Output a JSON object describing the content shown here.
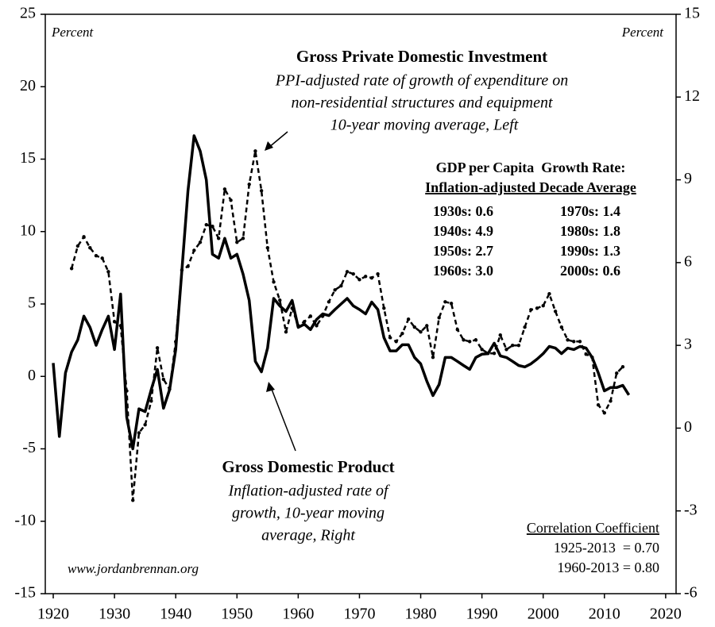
{
  "chart_data": {
    "type": "line",
    "x": [
      1920,
      1921,
      1922,
      1923,
      1924,
      1925,
      1926,
      1927,
      1928,
      1929,
      1930,
      1931,
      1932,
      1933,
      1934,
      1935,
      1936,
      1937,
      1938,
      1939,
      1940,
      1941,
      1942,
      1943,
      1944,
      1945,
      1946,
      1947,
      1948,
      1949,
      1950,
      1951,
      1952,
      1953,
      1954,
      1955,
      1956,
      1957,
      1958,
      1959,
      1960,
      1961,
      1962,
      1963,
      1964,
      1965,
      1966,
      1967,
      1968,
      1969,
      1970,
      1971,
      1972,
      1973,
      1974,
      1975,
      1976,
      1977,
      1978,
      1979,
      1980,
      1981,
      1982,
      1983,
      1984,
      1985,
      1986,
      1987,
      1988,
      1989,
      1990,
      1991,
      1992,
      1993,
      1994,
      1995,
      1996,
      1997,
      1998,
      1999,
      2000,
      2001,
      2002,
      2003,
      2004,
      2005,
      2006,
      2007,
      2008,
      2009,
      2010,
      2011,
      2012,
      2013,
      2014
    ],
    "series": [
      {
        "name": "Gross Private Domestic Investment",
        "description": [
          "PPI-adjusted rate of growth of expenditure on",
          "non-residential structures and equipment",
          "10-year moving average, Left"
        ],
        "color": "#000000",
        "style": "dashed",
        "markers": true,
        "axis": "y",
        "values": [
          null,
          null,
          null,
          7.45,
          9.0,
          9.64,
          8.88,
          8.33,
          8.16,
          7.23,
          3.78,
          3.5,
          -1.0,
          -8.55,
          -3.9,
          -3.34,
          -1.7,
          1.97,
          -0.2,
          -0.88,
          2.4,
          7.34,
          7.6,
          8.7,
          9.26,
          10.47,
          10.36,
          9.53,
          12.93,
          12.16,
          9.26,
          9.53,
          13.26,
          15.56,
          12.82,
          8.88,
          6.52,
          5.26,
          3.07,
          4.71,
          3.5,
          3.78,
          4.16,
          3.5,
          4.16,
          5.15,
          5.97,
          6.25,
          7.23,
          7.07,
          6.68,
          6.9,
          6.8,
          7.07,
          4.71,
          2.68,
          2.41,
          2.96,
          3.95,
          3.4,
          3.07,
          3.5,
          1.32,
          4.05,
          5.15,
          5.04,
          3.23,
          2.52,
          2.41,
          2.52,
          1.86,
          1.59,
          1.59,
          2.85,
          1.86,
          2.14,
          2.14,
          3.4,
          4.6,
          4.71,
          4.88,
          5.7,
          4.49,
          3.4,
          2.52,
          2.41,
          2.41,
          1.53,
          1.32,
          -1.97,
          -2.52,
          -1.7,
          0.22,
          0.66,
          null
        ]
      },
      {
        "name": "Gross Domestic Product",
        "description": [
          "Inflation-adjusted rate of",
          "growth, 10-year moving",
          "average, Right"
        ],
        "color": "#000000",
        "style": "solid",
        "markers": false,
        "axis": "y2",
        "values": [
          2.36,
          -0.3,
          2.0,
          2.76,
          3.2,
          4.06,
          3.65,
          3.0,
          3.57,
          4.06,
          2.85,
          4.86,
          0.4,
          -0.75,
          0.7,
          0.6,
          1.4,
          2.13,
          0.72,
          1.4,
          2.85,
          5.7,
          8.6,
          10.6,
          10.04,
          9.0,
          6.3,
          6.16,
          6.88,
          6.16,
          6.3,
          5.58,
          4.63,
          2.42,
          2.04,
          2.9,
          4.7,
          4.43,
          4.23,
          4.63,
          3.65,
          3.77,
          3.57,
          3.94,
          4.14,
          4.08,
          4.3,
          4.5,
          4.7,
          4.43,
          4.3,
          4.14,
          4.57,
          4.3,
          3.28,
          2.8,
          2.8,
          3.02,
          3.02,
          2.56,
          2.33,
          1.7,
          1.18,
          1.58,
          2.56,
          2.56,
          2.42,
          2.27,
          2.13,
          2.56,
          2.68,
          2.7,
          3.08,
          2.62,
          2.56,
          2.42,
          2.27,
          2.22,
          2.33,
          2.5,
          2.7,
          2.96,
          2.9,
          2.7,
          2.9,
          2.85,
          2.96,
          2.9,
          2.56,
          2.0,
          1.35,
          1.47,
          1.47,
          1.55,
          1.2
        ]
      }
    ],
    "xlim": [
      1918.7,
      2021.7
    ],
    "xticks": [
      1920,
      1930,
      1940,
      1950,
      1960,
      1970,
      1980,
      1990,
      2000,
      2010,
      2020
    ],
    "ylim": [
      -15,
      25
    ],
    "yticks": [
      -15,
      -10,
      -5,
      0,
      5,
      10,
      15,
      20,
      25
    ],
    "y2lim": [
      -6,
      15
    ],
    "y2ticks": [
      -6,
      -3,
      0,
      3,
      6,
      9,
      12,
      15
    ],
    "y_label": "Percent",
    "y2_label": "Percent",
    "decade_table": {
      "title": [
        "GDP per Capita  Growth Rate:",
        "Inflation-adjusted Decade Average"
      ],
      "rows": [
        [
          "1930s: 0.6",
          "1970s: 1.4"
        ],
        [
          "1940s: 4.9",
          "1980s: 1.8"
        ],
        [
          "1950s: 2.7",
          "1990s: 1.3"
        ],
        [
          "1960s: 3.0",
          "2000s: 0.6"
        ]
      ]
    },
    "correlation": {
      "title": "Correlation Coefficient",
      "rows": [
        "1925-2013  = 0.70",
        "1960-2013 = 0.80"
      ]
    },
    "source": "www.jordanbrennan.org"
  }
}
